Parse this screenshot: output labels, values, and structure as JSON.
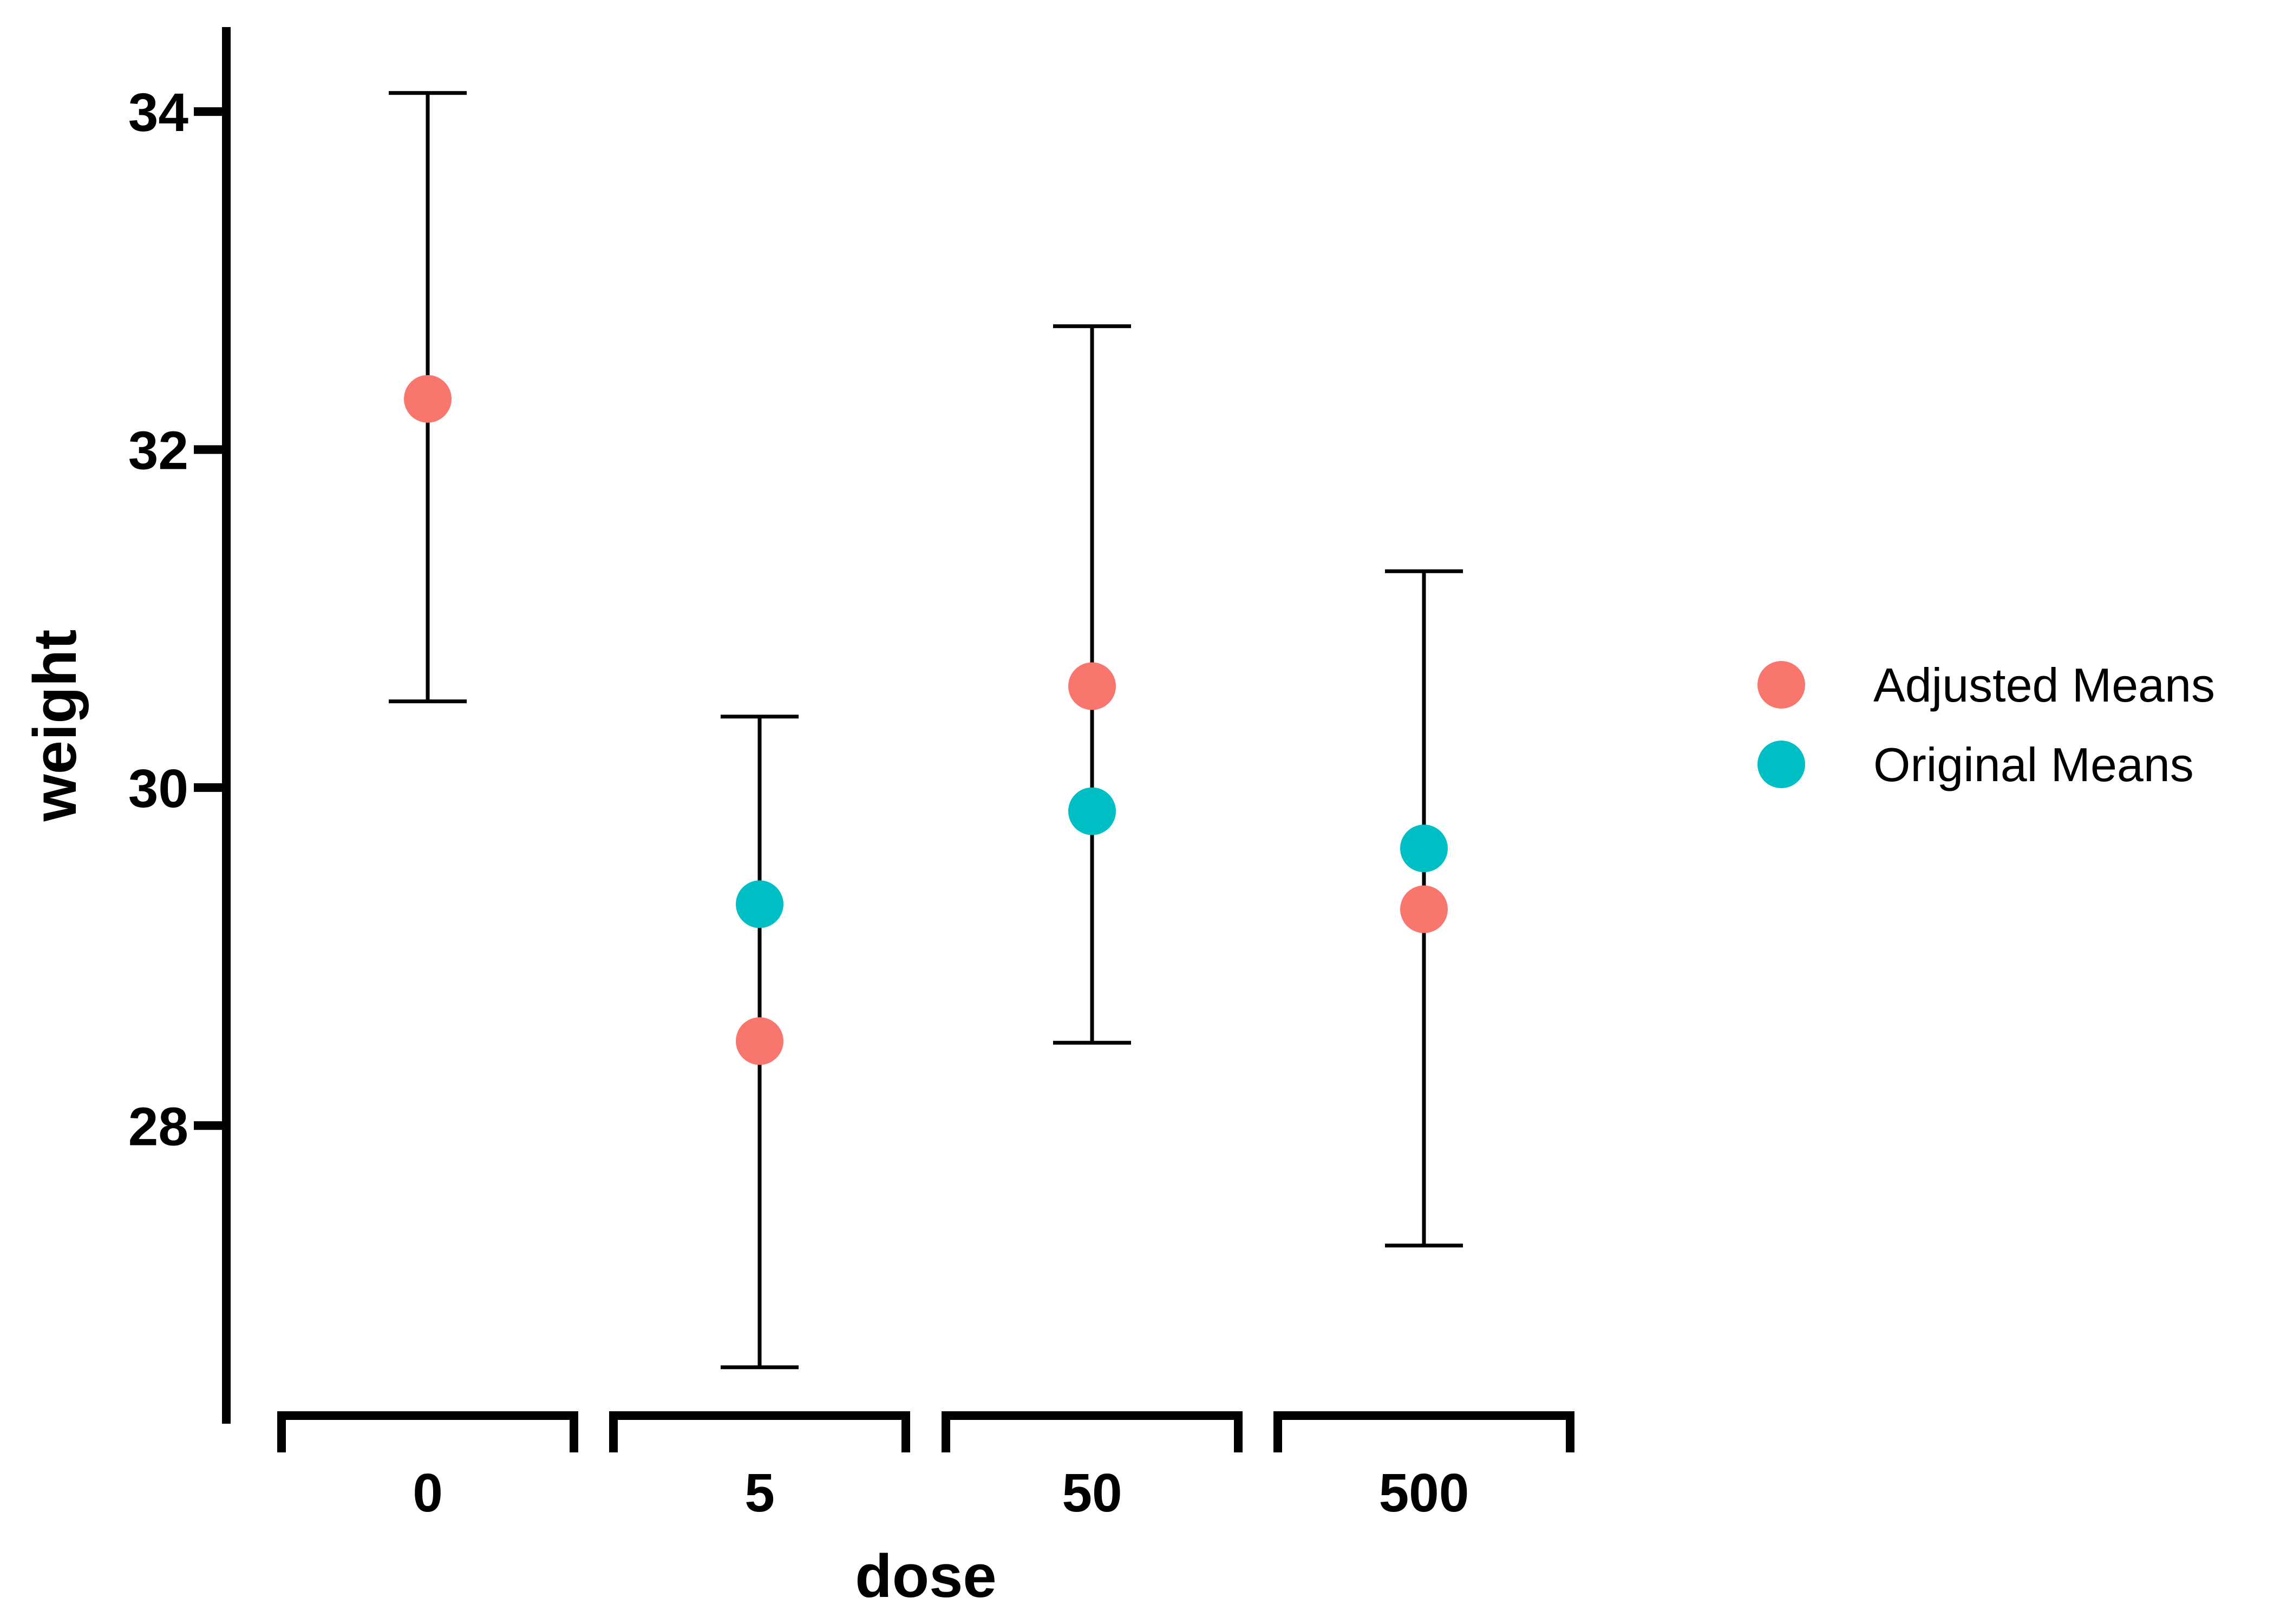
{
  "chart_data": {
    "type": "scatter",
    "title": "",
    "xlabel": "dose",
    "ylabel": "weight",
    "categories": [
      "0",
      "5",
      "50",
      "500"
    ],
    "ylim": [
      26.3,
      34.5
    ],
    "yticks": [
      28,
      30,
      32,
      34
    ],
    "grid": false,
    "legend_position": "right",
    "error_bars": [
      {
        "category": "0",
        "low": 30.51,
        "high": 34.11
      },
      {
        "category": "5",
        "low": 26.57,
        "high": 30.42
      },
      {
        "category": "50",
        "low": 28.49,
        "high": 32.73
      },
      {
        "category": "500",
        "low": 27.29,
        "high": 31.28
      }
    ],
    "series": [
      {
        "name": "Adjusted Means",
        "color": "#F8766D",
        "values": [
          32.3,
          28.5,
          30.6,
          29.28
        ]
      },
      {
        "name": "Original Means",
        "color": "#00BFC4",
        "values": [
          null,
          29.31,
          29.86,
          29.64
        ]
      }
    ]
  }
}
